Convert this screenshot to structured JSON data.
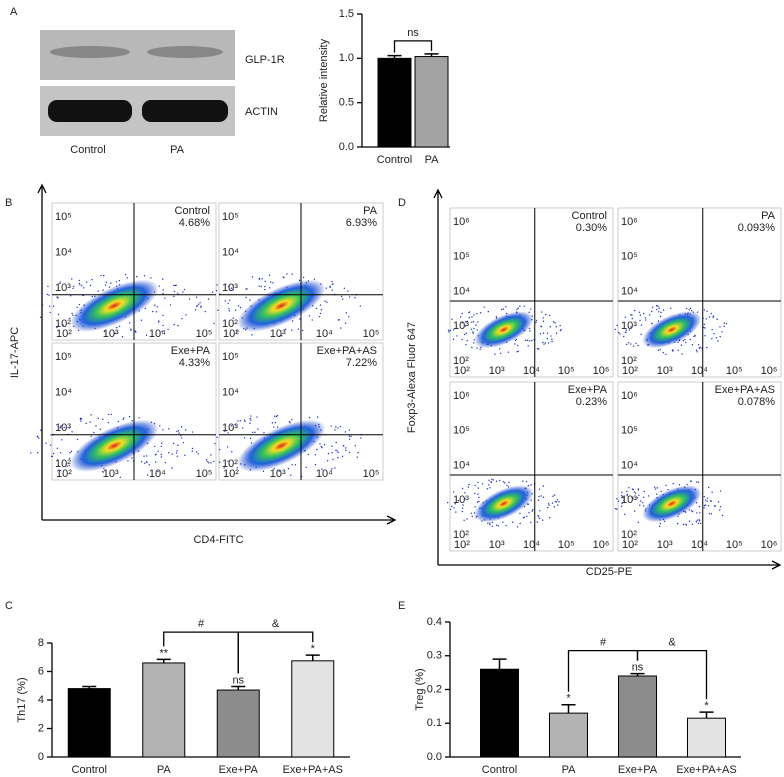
{
  "panel_labels": [
    "A",
    "B",
    "C",
    "D",
    "E"
  ],
  "blot": {
    "bands": [
      "GLP-1R",
      "ACTIN"
    ],
    "lanes": [
      "Control",
      "PA"
    ]
  },
  "flow": [
    {
      "y_label": "IL-17-APC",
      "x_label": "CD4-FITC",
      "xticks": [
        "10²",
        "10³",
        "10⁴",
        "10⁵"
      ],
      "yticks": [
        "10²",
        "10³",
        "10⁴",
        "10⁵"
      ],
      "plots": [
        {
          "name": "Control",
          "percent": "4.68%"
        },
        {
          "name": "PA",
          "percent": "6.93%"
        },
        {
          "name": "Exe+PA",
          "percent": "4.33%"
        },
        {
          "name": "Exe+PA+AS",
          "percent": "7.22%"
        }
      ]
    },
    {
      "y_label": "Foxp3-Alexa Fluor 647",
      "x_label": "CD25-PE",
      "xticks": [
        "10²",
        "10³",
        "10⁴",
        "10⁵",
        "10⁶"
      ],
      "yticks": [
        "10²",
        "10³",
        "10⁴",
        "10⁵",
        "10⁶"
      ],
      "plots": [
        {
          "name": "Control",
          "percent": "0.30%"
        },
        {
          "name": "PA",
          "percent": "0.093%"
        },
        {
          "name": "Exe+PA",
          "percent": "0.23%"
        },
        {
          "name": "Exe+PA+AS",
          "percent": "0.078%"
        }
      ]
    }
  ],
  "chart_data": [
    {
      "type": "bar",
      "y_label": "Relative intensity",
      "categories": [
        "Control",
        "PA"
      ],
      "values": [
        1.0,
        1.02
      ],
      "errors": [
        0.03,
        0.03
      ],
      "colors": [
        "#000000",
        "#a3a3a3"
      ],
      "ylim": [
        0,
        1.5
      ],
      "yticks": [
        {
          "value": 0,
          "label": "0.0"
        },
        0.5,
        {
          "value": 1,
          "label": "1.0"
        },
        1.5
      ],
      "bar_labels": [
        null,
        null
      ],
      "brackets": [
        {
          "from": 0,
          "to": 1,
          "label": "ns"
        }
      ]
    },
    {
      "type": "bar",
      "y_label": "Th17 (%)",
      "categories": [
        "Control",
        "PA",
        "Exe+PA",
        "Exe+PA+AS"
      ],
      "values": [
        4.8,
        6.6,
        4.7,
        6.75
      ],
      "errors": [
        0.15,
        0.25,
        0.25,
        0.4
      ],
      "colors": [
        "#000000",
        "#b3b3b3",
        "#8c8c8c",
        "#e3e3e3"
      ],
      "ylim": [
        0,
        8
      ],
      "yticks": [
        0,
        2,
        4,
        6,
        8
      ],
      "bar_labels": [
        null,
        "**",
        "ns",
        "*"
      ],
      "brackets": [
        {
          "from": 1,
          "to": 2,
          "label": "#"
        },
        {
          "from": 2,
          "to": 3,
          "label": "&"
        }
      ]
    },
    {
      "type": "bar",
      "y_label": "Treg (%)",
      "categories": [
        "Control",
        "PA",
        "Exe+PA",
        "Exe+PA+AS"
      ],
      "values": [
        0.26,
        0.13,
        0.24,
        0.115
      ],
      "errors": [
        0.03,
        0.025,
        0.007,
        0.018
      ],
      "colors": [
        "#000000",
        "#b3b3b3",
        "#8c8c8c",
        "#e3e3e3"
      ],
      "ylim": [
        0,
        0.4
      ],
      "yticks": [
        {
          "value": 0,
          "label": "0.0"
        },
        0.1,
        0.2,
        0.3,
        0.4
      ],
      "bar_labels": [
        null,
        "*",
        "ns",
        "*"
      ],
      "brackets": [
        {
          "from": 1,
          "to": 2,
          "label": "#"
        },
        {
          "from": 2,
          "to": 3,
          "label": "&"
        }
      ]
    }
  ]
}
